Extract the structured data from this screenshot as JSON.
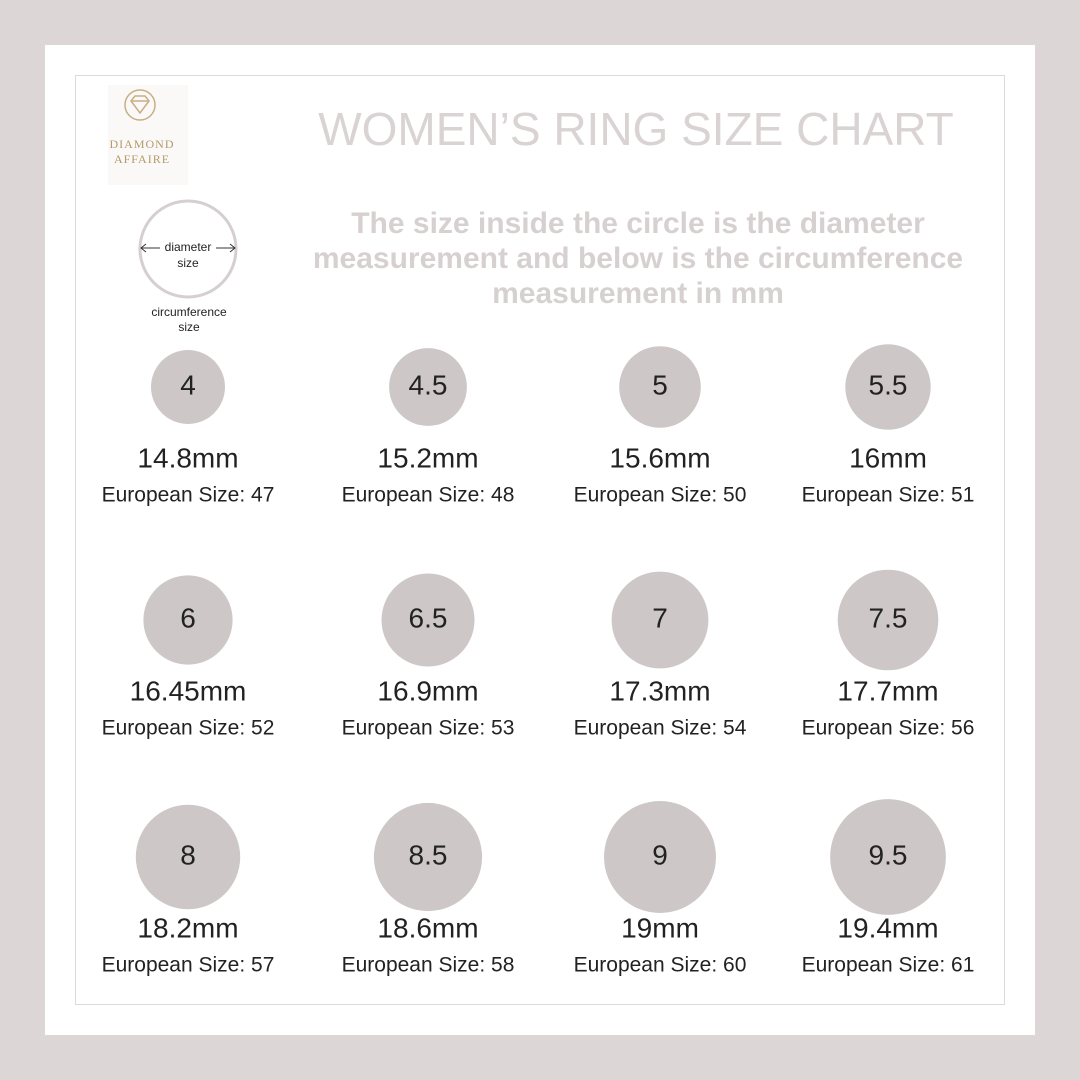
{
  "logo": {
    "line1": "DIAMOND",
    "line2": "AFFAIRE"
  },
  "header": {
    "title": "WOMEN’S RING SIZE CHART",
    "description": "The size inside the circle is the diameter measurement and below is the circumference measurement in mm"
  },
  "legend": {
    "inside_top": "diameter",
    "inside_bottom": "size",
    "below_top": "circumference",
    "below_bottom": "size"
  },
  "sizes": [
    {
      "size": "4",
      "diameter": "14.8mm",
      "european": "European Size: 47"
    },
    {
      "size": "4.5",
      "diameter": "15.2mm",
      "european": "European Size: 48"
    },
    {
      "size": "5",
      "diameter": "15.6mm",
      "european": "European Size: 50"
    },
    {
      "size": "5.5",
      "diameter": "16mm",
      "european": "European Size: 51"
    },
    {
      "size": "6",
      "diameter": "16.45mm",
      "european": "European Size: 52"
    },
    {
      "size": "6.5",
      "diameter": "16.9mm",
      "european": "European Size: 53"
    },
    {
      "size": "7",
      "diameter": "17.3mm",
      "european": "European Size: 54"
    },
    {
      "size": "7.5",
      "diameter": "17.7mm",
      "european": "European Size: 56"
    },
    {
      "size": "8",
      "diameter": "18.2mm",
      "european": "European Size: 57"
    },
    {
      "size": "8.5",
      "diameter": "18.6mm",
      "european": "European Size: 58"
    },
    {
      "size": "9",
      "diameter": "19mm",
      "european": "European Size: 60"
    },
    {
      "size": "9.5",
      "diameter": "19.4mm",
      "european": "European Size: 61"
    }
  ]
}
